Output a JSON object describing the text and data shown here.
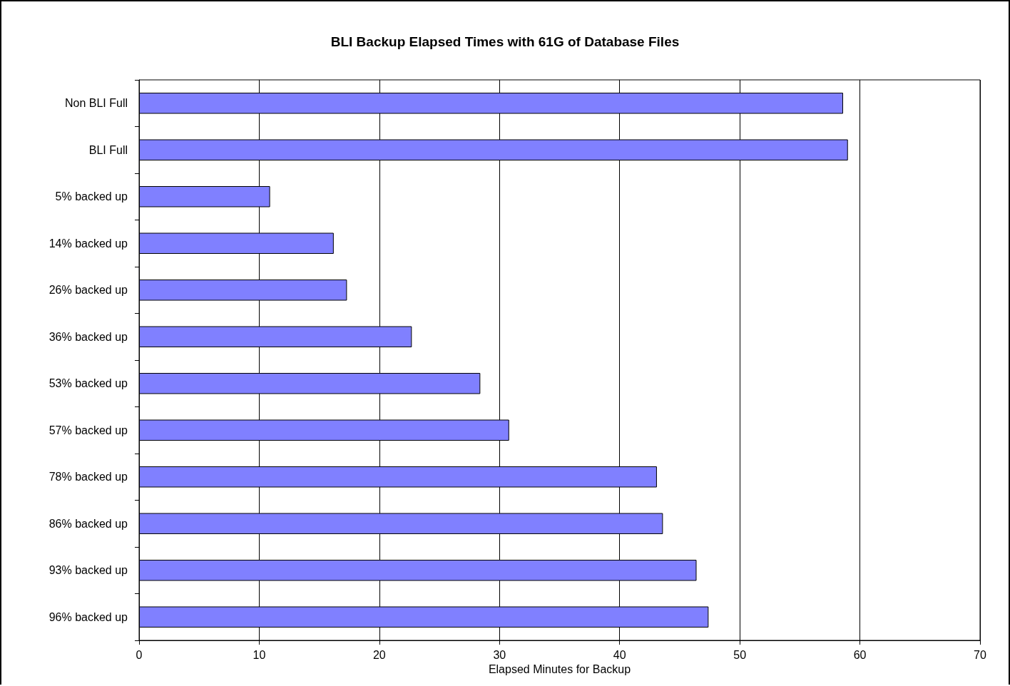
{
  "chart_data": {
    "type": "bar",
    "orientation": "horizontal",
    "title": "BLI Backup Elapsed Times with 61G of Database Files",
    "xlabel": "Elapsed Minutes for Backup",
    "categories": [
      "Non BLI Full",
      "BLI Full",
      "5% backed up",
      "14% backed up",
      "26% backed up",
      "36% backed up",
      "53% backed up",
      "57% backed up",
      "78% backed up",
      "86% backed up",
      "93% backed up",
      "96% backed up"
    ],
    "values": [
      58.6,
      59.0,
      10.9,
      16.2,
      17.3,
      22.7,
      28.4,
      30.8,
      43.1,
      43.6,
      46.4,
      47.4
    ],
    "color": "#8080ff",
    "xlim": [
      0,
      70
    ],
    "xticks": [
      0,
      10,
      20,
      30,
      40,
      50,
      60,
      70
    ],
    "grid": "x"
  }
}
